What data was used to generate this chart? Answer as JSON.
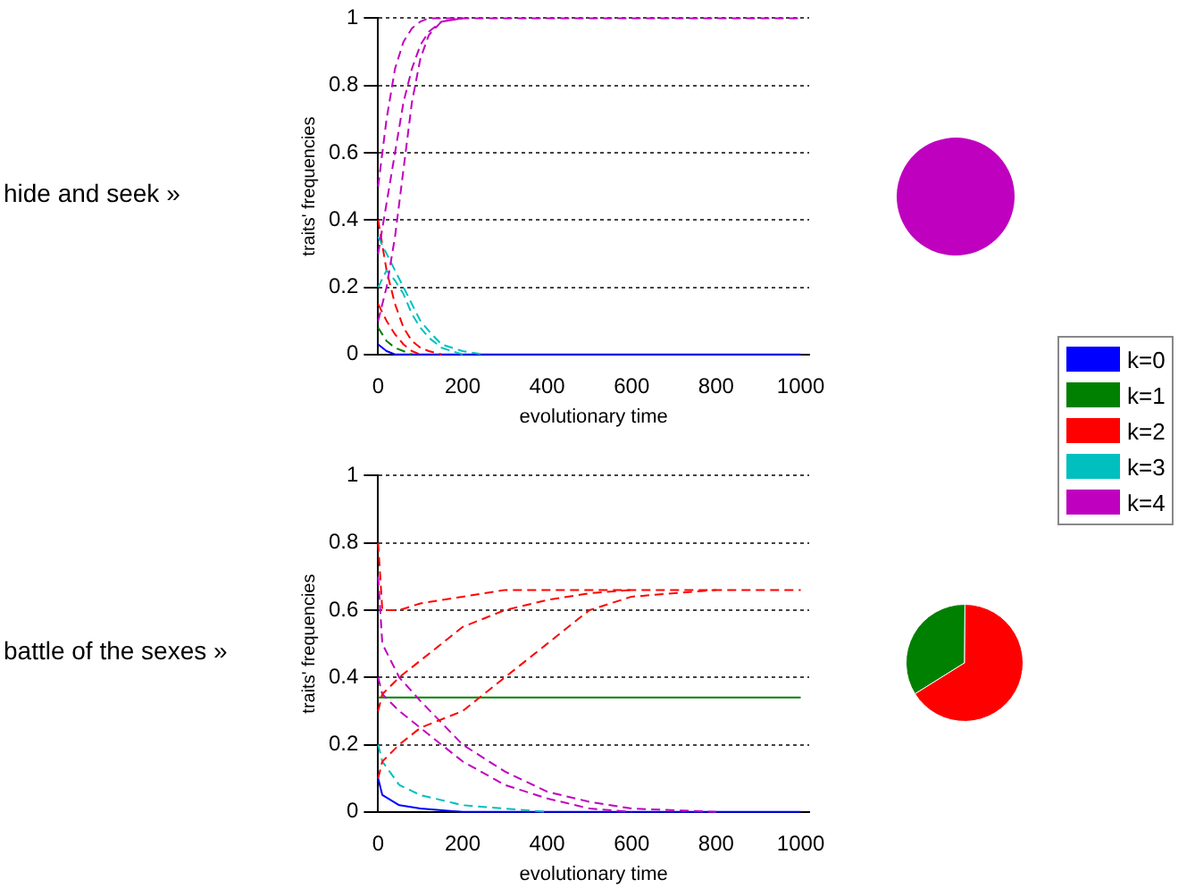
{
  "chart_data": [
    {
      "type": "line",
      "title": "hide and seek »",
      "xlabel": "evolutionary time",
      "ylabel": "traits' frequencies",
      "xlim": [
        0,
        1020
      ],
      "xticks": [
        0,
        200,
        400,
        600,
        800,
        1000
      ],
      "ylim": [
        0,
        1
      ],
      "yticks": [
        0,
        0.2,
        0.4,
        0.6,
        0.8,
        1
      ],
      "grid": "y",
      "legend": false,
      "marker": "none",
      "line_style": "dashed",
      "series": [
        {
          "color": "#bf00bf",
          "x": [
            0,
            20,
            40,
            60,
            80,
            100,
            120,
            150,
            200
          ],
          "values": [
            0.1,
            0.2,
            0.35,
            0.55,
            0.75,
            0.88,
            0.95,
            0.99,
            1
          ]
        },
        {
          "color": "#bf00bf",
          "x": [
            0,
            20,
            40,
            60,
            80,
            100,
            120,
            150,
            200
          ],
          "values": [
            0.3,
            0.45,
            0.6,
            0.75,
            0.85,
            0.92,
            0.96,
            0.99,
            1
          ]
        },
        {
          "color": "#00bfbf",
          "x": [
            0,
            20,
            40,
            60,
            80,
            100,
            120,
            150,
            200,
            250
          ],
          "values": [
            0.35,
            0.3,
            0.25,
            0.2,
            0.15,
            0.1,
            0.07,
            0.03,
            0.01,
            0
          ]
        },
        {
          "color": "#00bfbf",
          "x": [
            0,
            20,
            40,
            60,
            80,
            100,
            120,
            150,
            200
          ],
          "values": [
            0.2,
            0.25,
            0.22,
            0.18,
            0.12,
            0.08,
            0.05,
            0.02,
            0
          ]
        },
        {
          "color": "#ff0000",
          "x": [
            0,
            20,
            40,
            60,
            80,
            100,
            120,
            150
          ],
          "values": [
            0.4,
            0.25,
            0.15,
            0.08,
            0.04,
            0.02,
            0.01,
            0
          ]
        },
        {
          "color": "#ff0000",
          "x": [
            0,
            20,
            40,
            60,
            80,
            100
          ],
          "values": [
            0.15,
            0.1,
            0.06,
            0.03,
            0.01,
            0
          ]
        },
        {
          "color": "#008000",
          "x": [
            0,
            20,
            40,
            60,
            80
          ],
          "values": [
            0.08,
            0.04,
            0.02,
            0.01,
            0
          ]
        },
        {
          "color": "#bf00bf",
          "x": [
            0,
            20,
            40,
            60,
            80,
            100,
            120,
            1000
          ],
          "values": [
            0.5,
            0.7,
            0.85,
            0.93,
            0.97,
            0.99,
            1,
            1
          ]
        },
        {
          "color": "#0000ff",
          "line_style": "solid",
          "x": [
            0,
            20,
            40,
            1000
          ],
          "values": [
            0.03,
            0.01,
            0,
            0
          ]
        }
      ]
    },
    {
      "type": "pie",
      "categories": [
        null
      ],
      "values": [
        100
      ],
      "colors": [
        "#bf00bf"
      ]
    },
    {
      "type": "line",
      "title": "battle of the sexes »",
      "xlabel": "evolutionary time",
      "ylabel": "traits' frequencies",
      "xlim": [
        0,
        1020
      ],
      "xticks": [
        0,
        200,
        400,
        600,
        800,
        1000
      ],
      "ylim": [
        0,
        1
      ],
      "yticks": [
        0,
        0.2,
        0.4,
        0.6,
        0.8,
        1
      ],
      "grid": "y",
      "legend": false,
      "marker": "none",
      "line_style": "dashed",
      "series": [
        {
          "color": "#ff0000",
          "x": [
            0,
            10,
            50,
            100,
            200,
            300,
            400,
            500,
            600
          ],
          "values": [
            0.3,
            0.35,
            0.4,
            0.45,
            0.55,
            0.6,
            0.63,
            0.65,
            0.66
          ]
        },
        {
          "color": "#ff0000",
          "x": [
            0,
            10,
            50,
            100,
            200,
            300,
            400,
            500,
            600,
            800
          ],
          "values": [
            0.1,
            0.15,
            0.2,
            0.25,
            0.3,
            0.4,
            0.5,
            0.6,
            0.64,
            0.66
          ]
        },
        {
          "color": "#bf00bf",
          "x": [
            0,
            10,
            50,
            100,
            200,
            300,
            400,
            500,
            600,
            800
          ],
          "values": [
            0.7,
            0.5,
            0.4,
            0.33,
            0.2,
            0.12,
            0.06,
            0.03,
            0.01,
            0
          ]
        },
        {
          "color": "#bf00bf",
          "x": [
            0,
            10,
            50,
            100,
            200,
            300,
            400,
            500,
            600
          ],
          "values": [
            0.4,
            0.35,
            0.3,
            0.25,
            0.15,
            0.08,
            0.04,
            0.01,
            0
          ]
        },
        {
          "color": "#00bfbf",
          "x": [
            0,
            10,
            50,
            100,
            200,
            300,
            400
          ],
          "values": [
            0.2,
            0.15,
            0.08,
            0.05,
            0.02,
            0.01,
            0
          ]
        },
        {
          "color": "#008000",
          "line_style": "solid",
          "x": [
            0,
            1000
          ],
          "values": [
            0.34,
            0.34
          ]
        },
        {
          "color": "#ff0000",
          "x": [
            0,
            10,
            50,
            100,
            200,
            300,
            1000
          ],
          "values": [
            0.8,
            0.6,
            0.6,
            0.62,
            0.64,
            0.66,
            0.66
          ]
        },
        {
          "color": "#0000ff",
          "line_style": "solid",
          "x": [
            0,
            10,
            50,
            100,
            200,
            1000
          ],
          "values": [
            0.1,
            0.05,
            0.02,
            0.01,
            0,
            0
          ]
        }
      ]
    },
    {
      "type": "pie",
      "categories": [
        "k=0",
        "k=1",
        "k=2",
        "k=3",
        "k=4"
      ],
      "values": [
        0,
        34,
        66,
        0,
        0
      ],
      "colors": [
        "#0000ff",
        "#008000",
        "#ff0000",
        "#00bfbf",
        "#bf00bf"
      ],
      "legend": "top"
    }
  ]
}
